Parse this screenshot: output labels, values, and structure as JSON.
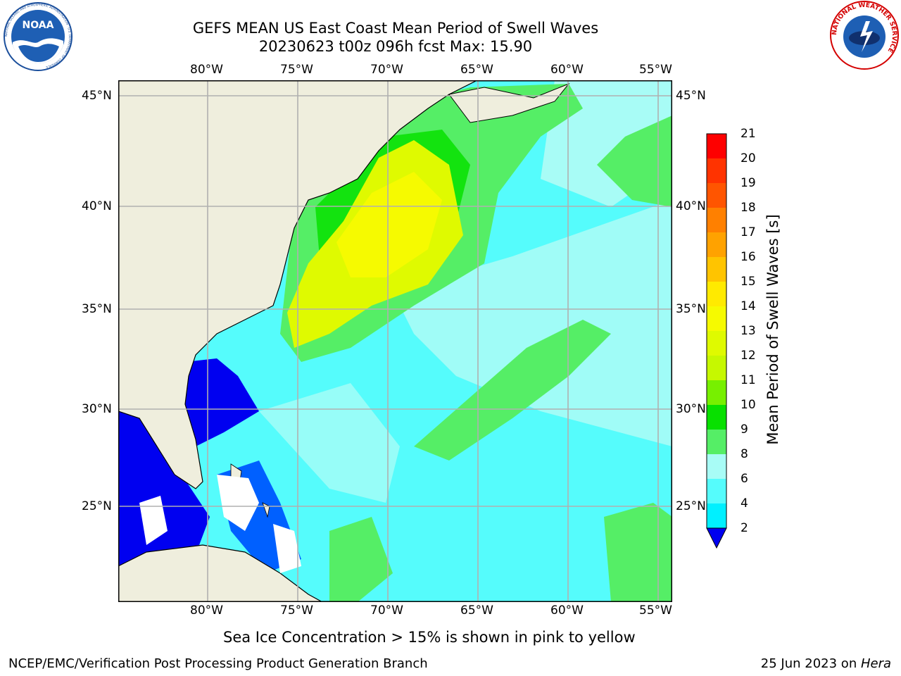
{
  "title": {
    "line1": "GEFS MEAN US East Coast Mean Period of Swell Waves",
    "line2": "20230623 t00z 096h fcst   Max: 15.90"
  },
  "logos": {
    "left_text": "NOAA",
    "left_ring_text": "NATIONAL OCEANIC AND ATMOSPHERIC ADMINISTRATION · U.S. DEPARTMENT OF COMMERCE",
    "right_ring_text": "NATIONAL WEATHER SERVICE"
  },
  "map": {
    "lon_labels": [
      "80°W",
      "75°W",
      "70°W",
      "65°W",
      "60°W",
      "55°W"
    ],
    "lat_labels": [
      "45°N",
      "40°N",
      "35°N",
      "30°N",
      "25°N"
    ],
    "colors": {
      "land": "#efeedd",
      "low_extend": "#0000f0",
      "grid": "#b0b0b0"
    }
  },
  "colorbar": {
    "label": "Mean Period of Swell Waves [s]",
    "ticks": [
      "21",
      "20",
      "19",
      "18",
      "17",
      "16",
      "15",
      "14",
      "13",
      "12",
      "11",
      "10",
      "9",
      "8",
      "6",
      "4",
      "2"
    ],
    "bands": [
      "#fe0000",
      "#ff3300",
      "#ff5500",
      "#ff8000",
      "#ffa200",
      "#ffc400",
      "#ffea00",
      "#f6fa00",
      "#dffa00",
      "#c6f800",
      "#77f000",
      "#08e000",
      "#55ee66",
      "#a8fcf6",
      "#55fcfc",
      "#00f0ff",
      "#00a0ff",
      "#0060ff"
    ]
  },
  "caption": "Sea Ice Concentration > 15% is shown in pink to yellow",
  "footer": {
    "left": "NCEP/EMC/Verification Post Processing Product Generation Branch",
    "date": "25 Jun 2023 on ",
    "machine": "Hera"
  }
}
